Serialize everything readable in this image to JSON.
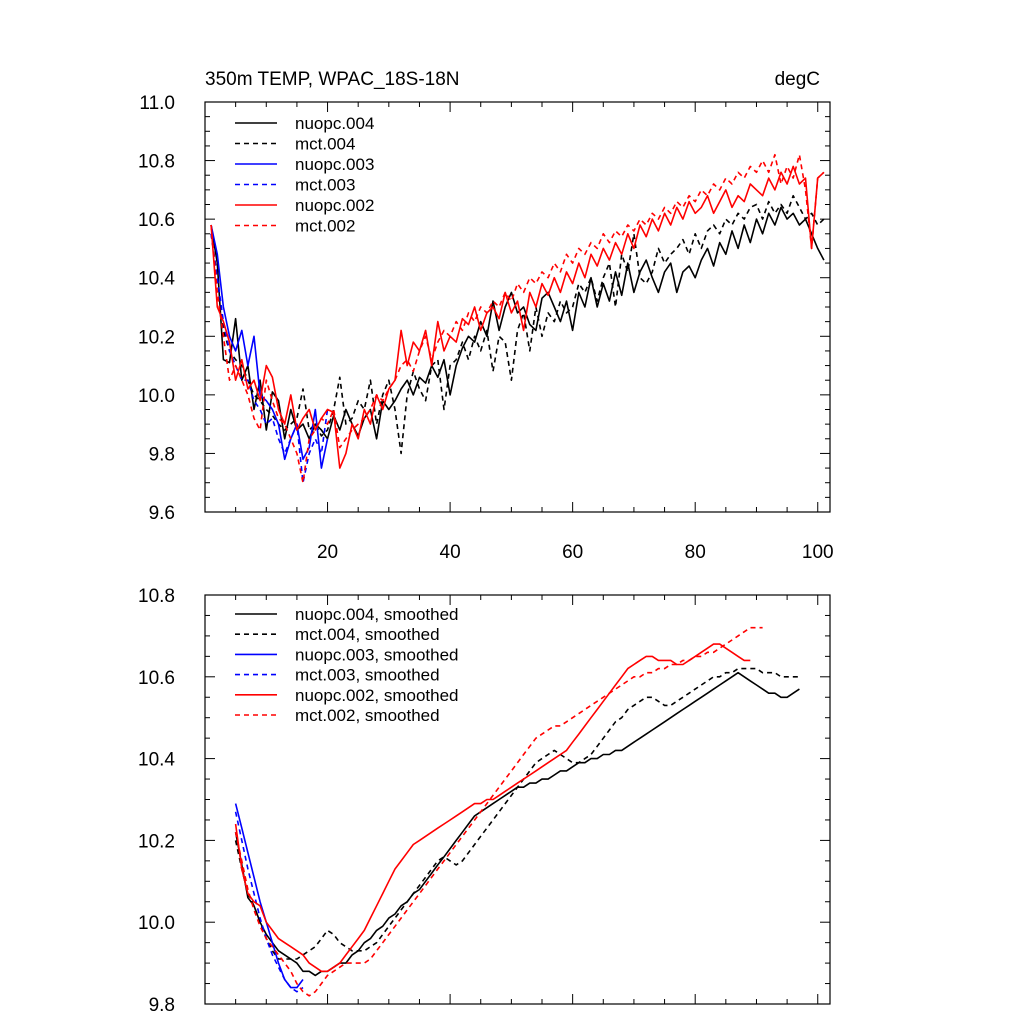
{
  "chart_data": [
    {
      "type": "line",
      "title_left": "350m TEMP, WPAC_18S-18N",
      "title_right": "degC",
      "xlabel": "",
      "ylabel": "",
      "xlim": [
        0,
        102
      ],
      "ylim": [
        9.6,
        11.0
      ],
      "xticks": [
        20,
        40,
        60,
        80,
        100
      ],
      "yticks": [
        9.6,
        9.8,
        10.0,
        10.2,
        10.4,
        10.6,
        10.8,
        11.0
      ],
      "ytick_labels": [
        "9.6",
        "9.8",
        "10.0",
        "10.2",
        "10.4",
        "10.6",
        "10.8",
        "11.0"
      ],
      "legend_position": "top-left",
      "series": [
        {
          "name": "nuopc.004",
          "color": "#000000",
          "dash": "solid",
          "x_start": 1,
          "values": [
            10.58,
            10.45,
            10.12,
            10.11,
            10.26,
            10.05,
            10.1,
            9.95,
            10.05,
            9.88,
            10.01,
            9.98,
            9.85,
            9.95,
            9.88,
            9.9,
            9.85,
            9.9,
            9.88,
            9.85,
            9.93,
            9.88,
            9.95,
            9.9,
            9.86,
            9.92,
            9.95,
            9.85,
            9.98,
            9.95,
            9.98,
            10.02,
            10.05,
            10.0,
            10.06,
            10.04,
            10.1,
            10.06,
            10.12,
            10.0,
            10.1,
            10.16,
            10.2,
            10.18,
            10.25,
            10.2,
            10.32,
            10.22,
            10.3,
            10.35,
            10.28,
            10.3,
            10.24,
            10.22,
            10.33,
            10.35,
            10.3,
            10.25,
            10.32,
            10.22,
            10.35,
            10.3,
            10.4,
            10.3,
            10.38,
            10.32,
            10.42,
            10.34,
            10.45,
            10.35,
            10.42,
            10.46,
            10.4,
            10.35,
            10.42,
            10.45,
            10.35,
            10.42,
            10.44,
            10.4,
            10.46,
            10.5,
            10.44,
            10.52,
            10.48,
            10.56,
            10.5,
            10.58,
            10.52,
            10.6,
            10.55,
            10.62,
            10.58,
            10.64,
            10.6,
            10.62,
            10.58,
            10.6,
            10.55,
            10.5,
            10.46
          ]
        },
        {
          "name": "mct.004",
          "color": "#000000",
          "dash": "dashed",
          "x_start": 1,
          "values": [
            10.55,
            10.4,
            10.22,
            10.15,
            10.12,
            10.1,
            10.05,
            10.0,
            9.98,
            9.95,
            9.93,
            9.9,
            9.88,
            9.9,
            9.92,
            10.02,
            9.88,
            9.9,
            9.86,
            9.88,
            9.95,
            10.06,
            9.9,
            9.92,
            9.98,
            9.95,
            10.05,
            9.9,
            10.0,
            10.05,
            9.95,
            9.8,
            10.0,
            10.08,
            10.02,
            9.98,
            10.1,
            10.12,
            9.95,
            10.1,
            10.12,
            10.18,
            10.12,
            10.2,
            10.15,
            10.22,
            10.08,
            10.2,
            10.18,
            10.05,
            10.22,
            10.28,
            10.15,
            10.3,
            10.2,
            10.28,
            10.25,
            10.32,
            10.28,
            10.3,
            10.38,
            10.35,
            10.4,
            10.32,
            10.4,
            10.45,
            10.3,
            10.48,
            10.42,
            10.55,
            10.4,
            10.38,
            10.42,
            10.5,
            10.45,
            10.48,
            10.5,
            10.53,
            10.48,
            10.55,
            10.5,
            10.56,
            10.58,
            10.55,
            10.6,
            10.58,
            10.62,
            10.6,
            10.64,
            10.65,
            10.6,
            10.66,
            10.62,
            10.65,
            10.62,
            10.68,
            10.64,
            10.6,
            10.62,
            10.58,
            10.6
          ]
        },
        {
          "name": "nuopc.003",
          "color": "#0000ff",
          "dash": "solid",
          "x_start": 1,
          "values": [
            10.58,
            10.48,
            10.3,
            10.2,
            10.15,
            10.22,
            10.1,
            10.2,
            10.0,
            9.98,
            9.95,
            9.9,
            9.78,
            9.85,
            9.9,
            9.78,
            9.82,
            9.95,
            9.75,
            9.85
          ]
        },
        {
          "name": "mct.003",
          "color": "#0000ff",
          "dash": "dashed",
          "x_start": 1,
          "values": [
            10.55,
            10.4,
            10.25,
            10.15,
            10.1,
            10.05,
            10.05,
            9.98,
            9.95,
            9.9,
            9.92,
            9.85,
            9.8,
            9.85,
            9.9,
            9.7,
            9.8,
            9.85,
            9.8,
            9.95
          ]
        },
        {
          "name": "nuopc.002",
          "color": "#ff0000",
          "dash": "solid",
          "x_start": 1,
          "values": [
            10.58,
            10.3,
            10.25,
            10.18,
            10.05,
            10.12,
            10.02,
            10.05,
            9.98,
            10.1,
            10.06,
            9.95,
            9.9,
            10.0,
            9.88,
            9.92,
            9.95,
            9.88,
            9.92,
            9.95,
            9.94,
            9.75,
            9.8,
            9.9,
            9.85,
            9.95,
            9.9,
            10.0,
            9.95,
            10.02,
            10.05,
            10.22,
            10.1,
            10.18,
            10.15,
            10.22,
            10.1,
            10.25,
            10.15,
            10.2,
            10.18,
            10.26,
            10.24,
            10.3,
            10.22,
            10.28,
            10.3,
            10.26,
            10.35,
            10.28,
            10.32,
            10.22,
            10.35,
            10.3,
            10.38,
            10.34,
            10.4,
            10.35,
            10.42,
            10.38,
            10.45,
            10.4,
            10.48,
            10.44,
            10.5,
            10.46,
            10.52,
            10.48,
            10.55,
            10.5,
            10.58,
            10.54,
            10.6,
            10.56,
            10.62,
            10.58,
            10.64,
            10.6,
            10.66,
            10.62,
            10.64,
            10.68,
            10.62,
            10.66,
            10.7,
            10.64,
            10.68,
            10.66,
            10.72,
            10.7,
            10.68,
            10.74,
            10.7,
            10.76,
            10.72,
            10.78,
            10.72,
            10.74,
            10.5,
            10.74,
            10.76
          ]
        },
        {
          "name": "mct.002",
          "color": "#ff0000",
          "dash": "dashed",
          "x_start": 1,
          "values": [
            10.58,
            10.35,
            10.2,
            10.05,
            10.1,
            10.05,
            10.0,
            9.92,
            9.88,
            10.05,
            9.98,
            9.92,
            9.9,
            9.85,
            9.8,
            9.7,
            9.85,
            9.88,
            9.92,
            9.9,
            9.95,
            9.82,
            9.85,
            9.88,
            9.9,
            9.92,
            9.95,
            10.0,
            9.98,
            10.02,
            10.05,
            10.1,
            10.12,
            10.08,
            10.15,
            10.2,
            10.12,
            10.18,
            10.22,
            10.2,
            10.25,
            10.22,
            10.28,
            10.25,
            10.3,
            10.28,
            10.32,
            10.3,
            10.35,
            10.32,
            10.38,
            10.35,
            10.4,
            10.38,
            10.42,
            10.4,
            10.45,
            10.42,
            10.48,
            10.45,
            10.5,
            10.48,
            10.52,
            10.5,
            10.55,
            10.52,
            10.56,
            10.54,
            10.58,
            10.56,
            10.6,
            10.58,
            10.62,
            10.6,
            10.64,
            10.62,
            10.66,
            10.64,
            10.68,
            10.66,
            10.7,
            10.68,
            10.72,
            10.7,
            10.74,
            10.72,
            10.76,
            10.74,
            10.78,
            10.76,
            10.8,
            10.76,
            10.82,
            10.72,
            10.78,
            10.74,
            10.82,
            10.7,
            10.5,
            10.74,
            10.76
          ]
        }
      ]
    },
    {
      "type": "line",
      "xlabel": "",
      "ylabel": "",
      "xlim": [
        0,
        102
      ],
      "ylim": [
        9.8,
        10.8
      ],
      "xticks": [
        20,
        40,
        60,
        80,
        100
      ],
      "yticks": [
        9.8,
        10.0,
        10.2,
        10.4,
        10.6,
        10.8
      ],
      "ytick_labels": [
        "9.8",
        "10.0",
        "10.2",
        "10.4",
        "10.6",
        "10.8"
      ],
      "legend_position": "top-left",
      "series": [
        {
          "name": "nuopc.004, smoothed",
          "color": "#000000",
          "dash": "solid",
          "x_start": 5,
          "values": [
            10.22,
            10.14,
            10.06,
            10.04,
            10.0,
            9.97,
            9.95,
            9.93,
            9.92,
            9.91,
            9.9,
            9.88,
            9.88,
            9.87,
            9.88,
            9.88,
            9.89,
            9.9,
            9.9,
            9.92,
            9.93,
            9.95,
            9.96,
            9.98,
            9.99,
            10.01,
            10.02,
            10.04,
            10.05,
            10.07,
            10.08,
            10.1,
            10.12,
            10.14,
            10.16,
            10.18,
            10.2,
            10.22,
            10.24,
            10.26,
            10.27,
            10.28,
            10.29,
            10.3,
            10.31,
            10.32,
            10.33,
            10.33,
            10.34,
            10.34,
            10.35,
            10.35,
            10.36,
            10.37,
            10.37,
            10.38,
            10.39,
            10.39,
            10.4,
            10.4,
            10.41,
            10.41,
            10.42,
            10.42,
            10.43,
            10.44,
            10.45,
            10.46,
            10.47,
            10.48,
            10.49,
            10.5,
            10.51,
            10.52,
            10.53,
            10.54,
            10.55,
            10.56,
            10.57,
            10.58,
            10.59,
            10.6,
            10.61,
            10.6,
            10.59,
            10.58,
            10.57,
            10.56,
            10.56,
            10.55,
            10.55,
            10.56,
            10.57
          ]
        },
        {
          "name": "mct.004, smoothed",
          "color": "#000000",
          "dash": "dashed",
          "x_start": 5,
          "values": [
            10.2,
            10.13,
            10.07,
            10.04,
            10.0,
            9.96,
            9.93,
            9.91,
            9.91,
            9.91,
            9.91,
            9.92,
            9.93,
            9.94,
            9.96,
            9.98,
            9.97,
            9.95,
            9.94,
            9.93,
            9.93,
            9.93,
            9.94,
            9.95,
            9.97,
            9.99,
            10.01,
            10.03,
            10.05,
            10.07,
            10.09,
            10.11,
            10.13,
            10.15,
            10.16,
            10.15,
            10.14,
            10.15,
            10.17,
            10.19,
            10.21,
            10.23,
            10.25,
            10.27,
            10.29,
            10.31,
            10.33,
            10.35,
            10.37,
            10.39,
            10.4,
            10.41,
            10.42,
            10.41,
            10.4,
            10.39,
            10.39,
            10.4,
            10.41,
            10.43,
            10.45,
            10.47,
            10.49,
            10.5,
            10.52,
            10.53,
            10.54,
            10.55,
            10.55,
            10.54,
            10.53,
            10.53,
            10.54,
            10.55,
            10.56,
            10.57,
            10.58,
            10.59,
            10.6,
            10.6,
            10.61,
            10.61,
            10.62,
            10.62,
            10.62,
            10.62,
            10.61,
            10.61,
            10.61,
            10.6,
            10.6,
            10.6,
            10.6
          ]
        },
        {
          "name": "nuopc.003, smoothed",
          "color": "#0000ff",
          "dash": "solid",
          "x_start": 5,
          "values": [
            10.29,
            10.23,
            10.17,
            10.11,
            10.05,
            10.0,
            9.95,
            9.9,
            9.86,
            9.84,
            9.84,
            9.86
          ]
        },
        {
          "name": "mct.003, smoothed",
          "color": "#0000ff",
          "dash": "dashed",
          "x_start": 5,
          "values": [
            10.27,
            10.2,
            10.13,
            10.07,
            10.01,
            9.96,
            9.92,
            9.89,
            9.86,
            9.84,
            9.83,
            9.84
          ]
        },
        {
          "name": "nuopc.002, smoothed",
          "color": "#ff0000",
          "dash": "solid",
          "x_start": 5,
          "values": [
            10.24,
            10.13,
            10.07,
            10.05,
            10.04,
            10.0,
            9.98,
            9.96,
            9.95,
            9.94,
            9.93,
            9.92,
            9.9,
            9.89,
            9.88,
            9.88,
            9.89,
            9.9,
            9.92,
            9.94,
            9.96,
            9.98,
            10.01,
            10.04,
            10.07,
            10.1,
            10.13,
            10.15,
            10.17,
            10.19,
            10.2,
            10.21,
            10.22,
            10.23,
            10.24,
            10.25,
            10.26,
            10.27,
            10.28,
            10.29,
            10.29,
            10.3,
            10.3,
            10.31,
            10.32,
            10.33,
            10.34,
            10.35,
            10.36,
            10.37,
            10.38,
            10.39,
            10.4,
            10.41,
            10.42,
            10.44,
            10.46,
            10.48,
            10.5,
            10.52,
            10.54,
            10.56,
            10.58,
            10.6,
            10.62,
            10.63,
            10.64,
            10.65,
            10.65,
            10.64,
            10.64,
            10.64,
            10.63,
            10.63,
            10.64,
            10.65,
            10.66,
            10.67,
            10.68,
            10.68,
            10.67,
            10.66,
            10.65,
            10.64,
            10.64
          ]
        },
        {
          "name": "mct.002, smoothed",
          "color": "#ff0000",
          "dash": "dashed",
          "x_start": 5,
          "values": [
            10.22,
            10.15,
            10.08,
            10.03,
            9.99,
            9.96,
            9.94,
            9.92,
            9.9,
            9.88,
            9.85,
            9.83,
            9.82,
            9.83,
            9.85,
            9.87,
            9.88,
            9.89,
            9.9,
            9.9,
            9.9,
            9.9,
            9.91,
            9.93,
            9.95,
            9.97,
            9.99,
            10.01,
            10.03,
            10.05,
            10.07,
            10.09,
            10.11,
            10.13,
            10.15,
            10.17,
            10.19,
            10.21,
            10.23,
            10.25,
            10.27,
            10.29,
            10.31,
            10.33,
            10.35,
            10.37,
            10.39,
            10.41,
            10.43,
            10.45,
            10.46,
            10.47,
            10.48,
            10.48,
            10.49,
            10.5,
            10.51,
            10.52,
            10.53,
            10.54,
            10.55,
            10.56,
            10.57,
            10.58,
            10.59,
            10.6,
            10.6,
            10.61,
            10.61,
            10.62,
            10.62,
            10.63,
            10.63,
            10.64,
            10.64,
            10.65,
            10.65,
            10.66,
            10.66,
            10.67,
            10.68,
            10.69,
            10.7,
            10.71,
            10.72,
            10.72,
            10.72
          ]
        }
      ]
    }
  ]
}
